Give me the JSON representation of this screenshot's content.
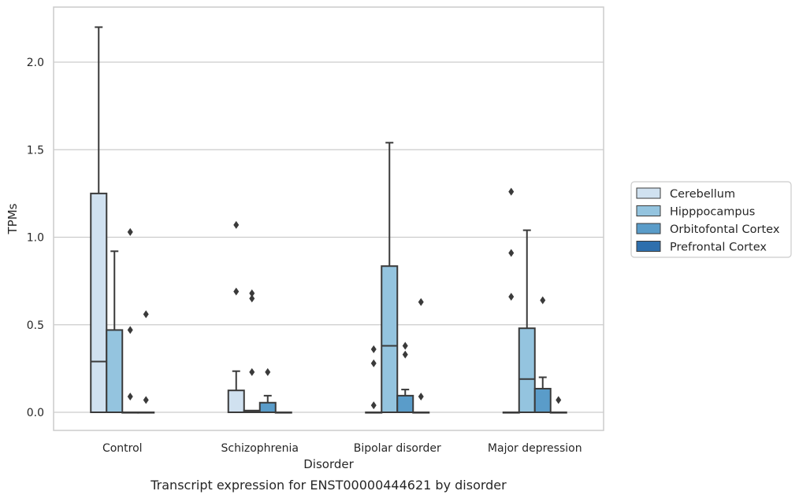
{
  "chart_data": {
    "type": "box",
    "xlabel": "Disorder",
    "ylabel": "TPMs",
    "caption": "Transcript expression for ENST00000444621 by disorder",
    "ylim": [
      -0.11,
      2.33
    ],
    "yticks": [
      "0.0",
      "0.5",
      "1.0",
      "1.5",
      "2.0"
    ],
    "ytick_values": [
      0,
      0.5,
      1.0,
      1.5,
      2.0
    ],
    "grid": true,
    "legend_position": "right",
    "categories": [
      "Control",
      "Schizophrenia",
      "Bipolar disorder",
      "Major depression"
    ],
    "series": [
      {
        "name": "Cerebellum",
        "color": "#d0e1f0",
        "boxes": [
          {
            "q1": 0,
            "median": 0.29,
            "q3": 1.25,
            "whislo": 0,
            "whishi": 2.2,
            "fliers": []
          },
          {
            "q1": 0,
            "median": 0,
            "q3": 0.125,
            "whislo": 0,
            "whishi": 0.235,
            "fliers": [
              0.69,
              1.07
            ]
          },
          {
            "q1": 0,
            "median": 0,
            "q3": 0,
            "whislo": 0,
            "whishi": 0,
            "fliers": [
              0.04,
              0.28,
              0.36
            ]
          },
          {
            "q1": 0,
            "median": 0,
            "q3": 0,
            "whislo": 0,
            "whishi": 0,
            "fliers": [
              0.66,
              0.91,
              1.26
            ]
          }
        ]
      },
      {
        "name": "Hipppocampus",
        "color": "#94c4df",
        "boxes": [
          {
            "q1": 0,
            "median": 0,
            "q3": 0.47,
            "whislo": 0,
            "whishi": 0.92,
            "fliers": []
          },
          {
            "q1": 0,
            "median": 0.005,
            "q3": 0.01,
            "whislo": 0,
            "whishi": 0.01,
            "fliers": [
              0.23,
              0.65,
              0.68
            ]
          },
          {
            "q1": 0,
            "median": 0.38,
            "q3": 0.835,
            "whislo": 0,
            "whishi": 1.54,
            "fliers": []
          },
          {
            "q1": 0,
            "median": 0.19,
            "q3": 0.48,
            "whislo": 0,
            "whishi": 1.04,
            "fliers": []
          }
        ]
      },
      {
        "name": "Orbitofontal Cortex",
        "color": "#5a9cc9",
        "boxes": [
          {
            "q1": 0,
            "median": 0,
            "q3": 0,
            "whislo": 0,
            "whishi": 0,
            "fliers": [
              0.09,
              0.47,
              1.03
            ]
          },
          {
            "q1": 0,
            "median": 0,
            "q3": 0.055,
            "whislo": 0,
            "whishi": 0.095,
            "fliers": [
              0.23
            ]
          },
          {
            "q1": 0,
            "median": 0,
            "q3": 0.095,
            "whislo": 0,
            "whishi": 0.13,
            "fliers": [
              0.33,
              0.38
            ]
          },
          {
            "q1": 0,
            "median": 0,
            "q3": 0.135,
            "whislo": 0,
            "whishi": 0.2,
            "fliers": [
              0.64
            ]
          }
        ]
      },
      {
        "name": "Prefrontal Cortex",
        "color": "#2e6fad",
        "boxes": [
          {
            "q1": 0,
            "median": 0,
            "q3": 0,
            "whislo": 0,
            "whishi": 0,
            "fliers": [
              0.07,
              0.56
            ]
          },
          {
            "q1": 0,
            "median": 0,
            "q3": 0,
            "whislo": 0,
            "whishi": 0,
            "fliers": []
          },
          {
            "q1": 0,
            "median": 0,
            "q3": 0,
            "whislo": 0,
            "whishi": 0,
            "fliers": [
              0.09,
              0.63
            ]
          },
          {
            "q1": 0,
            "median": 0,
            "q3": 0,
            "whislo": 0,
            "whishi": 0,
            "fliers": [
              0.07
            ]
          }
        ]
      }
    ]
  }
}
